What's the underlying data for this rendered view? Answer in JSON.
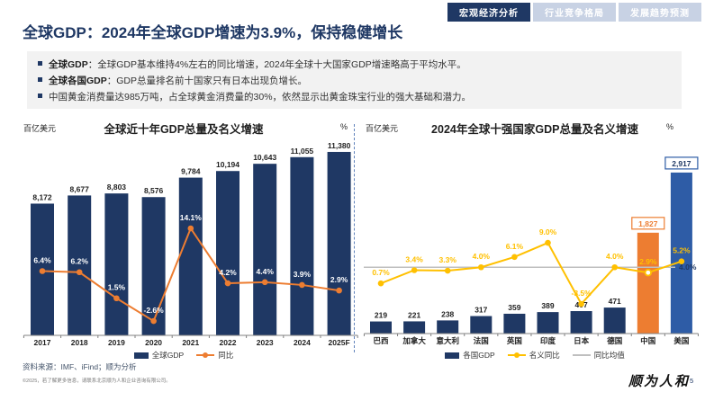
{
  "tabs": [
    {
      "label": "宏观经济分析",
      "active": true
    },
    {
      "label": "行业竞争格局",
      "active": false
    },
    {
      "label": "发展趋势预测",
      "active": false
    }
  ],
  "title": "全球GDP：2024年全球GDP增速为3.9%，保持稳健增长",
  "summary_bullets": [
    {
      "prefix": "全球GDP",
      "text": "：全球GDP基本维持4%左右的同比增速，2024年全球十大国家GDP增速略高于平均水平。"
    },
    {
      "prefix": "全球各国GDP",
      "text": "：GDP总量排名前十国家只有日本出现负增长。"
    },
    {
      "prefix": "",
      "text": "中国黄金消费量达985万吨，占全球黄金消费量的30%，依然显示出黄金珠宝行业的强大基础和潜力。"
    }
  ],
  "chart_data": [
    {
      "type": "bar",
      "subtype": "combo-bar-line",
      "title": "全球近十年GDP总量及名义增速",
      "unit_left": "百亿美元",
      "unit_right": "%",
      "categories": [
        "2017",
        "2018",
        "2019",
        "2020",
        "2021",
        "2022",
        "2023",
        "2024",
        "2025F"
      ],
      "series": [
        {
          "name": "全球GDP",
          "type": "bar",
          "color": "#1F3864",
          "values": [
            8172,
            8677,
            8803,
            8576,
            9784,
            10194,
            10643,
            11055,
            11380
          ],
          "labels": [
            "8,172",
            "8,677",
            "8,803",
            "8,576",
            "9,784",
            "10,194",
            "10,643",
            "11,055",
            "11,380"
          ]
        },
        {
          "name": "同比",
          "type": "line",
          "color": "#ED7D31",
          "label_color": "#FFFFFF",
          "values": [
            6.4,
            6.2,
            1.5,
            -2.6,
            14.1,
            4.2,
            4.4,
            3.9,
            2.9
          ],
          "labels": [
            "6.4%",
            "6.2%",
            "1.5%",
            "-2.6%",
            "14.1%",
            "4.2%",
            "4.4%",
            "3.9%",
            "2.9%"
          ]
        }
      ],
      "legend": [
        {
          "label": "全球GDP",
          "type": "bar",
          "color": "#1F3864"
        },
        {
          "label": "同比",
          "type": "line",
          "color": "#ED7D31"
        }
      ]
    },
    {
      "type": "bar",
      "subtype": "combo-bar-line",
      "title": "2024年全球十强国家GDP总量及名义增速",
      "unit_left": "百亿美元",
      "unit_right": "%",
      "categories": [
        "巴西",
        "加拿大",
        "意大利",
        "法国",
        "英国",
        "印度",
        "日本",
        "德国",
        "中国",
        "美国"
      ],
      "series": [
        {
          "name": "各国GDP",
          "type": "bar",
          "color": "#1F3864",
          "values": [
            219,
            221,
            238,
            317,
            359,
            389,
            407,
            471,
            1827,
            2917
          ],
          "labels": [
            "219",
            "221",
            "238",
            "317",
            "359",
            "389",
            "407",
            "471",
            "1,827",
            "2,917"
          ],
          "highlight_colors": {
            "8": "#ED7D31",
            "9": "#2E5CA6"
          },
          "boxed_labels": {
            "8": {
              "border": "#ED7D31",
              "text": "#ED7D31"
            },
            "9": {
              "border": "#2E5CA6",
              "text": "#1F3864"
            }
          }
        },
        {
          "name": "名义同比",
          "type": "line",
          "color": "#FFC000",
          "label_color": "#FFC000",
          "values": [
            0.7,
            3.4,
            3.3,
            4.0,
            6.1,
            9.0,
            -3.5,
            4.0,
            2.9,
            5.2
          ],
          "labels": [
            "0.7%",
            "3.4%",
            "3.3%",
            "4.0%",
            "6.1%",
            "9.0%",
            "-3.5%",
            "4.0%",
            "2.9%",
            "5.2%"
          ],
          "open_marker_index": 8
        },
        {
          "name": "同比均值",
          "type": "avg_line",
          "color": "#BFBFBF",
          "value": 4.0,
          "label": "4.0%",
          "label_color": "#1F3864"
        }
      ],
      "legend": [
        {
          "label": "各国GDP",
          "type": "bar",
          "color": "#1F3864"
        },
        {
          "label": "名义同比",
          "type": "line",
          "color": "#FFC000"
        },
        {
          "label": "同比均值",
          "type": "avg",
          "color": "#BFBFBF"
        }
      ]
    }
  ],
  "footer": {
    "source": "资料来源：IMF、iFind；顺为分析",
    "copyright": "©2025，若了解更多信息，请联系北京顺为人和企业咨询有限公司。",
    "logo": "顺为人和",
    "page": "5"
  }
}
